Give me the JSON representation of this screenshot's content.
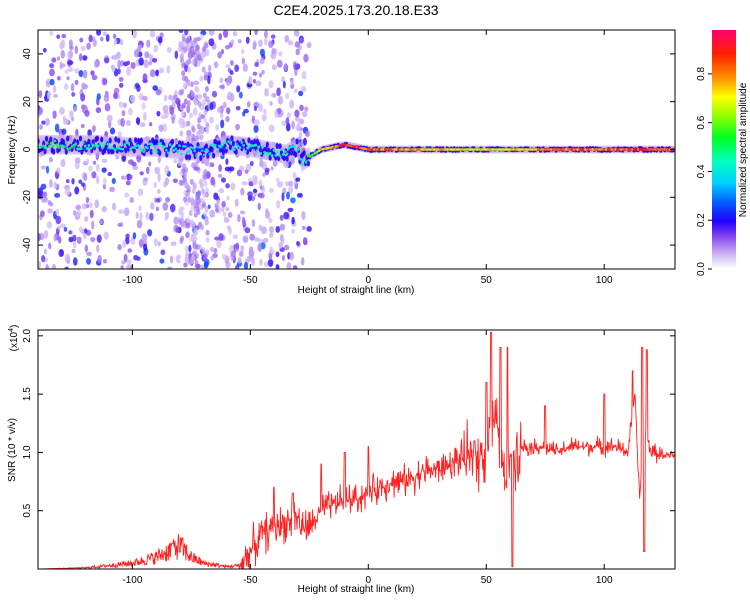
{
  "title": "C2E4.2025.173.20.18.E33",
  "colorbar": {
    "label": "Normalized spectral amplitude",
    "ticks": [
      "0.0",
      "0.2",
      "0.4",
      "0.6",
      "0.8"
    ],
    "tick_values": [
      0.0,
      0.2,
      0.4,
      0.6,
      0.8
    ],
    "range": [
      0,
      0.98
    ]
  },
  "chart_data": [
    {
      "type": "heatmap",
      "panel": "spectrogram",
      "xlabel": "Height of straight line (km)",
      "ylabel": "Frequency (Hz)",
      "xlim": [
        -140,
        130
      ],
      "ylim": [
        -50,
        50
      ],
      "xticks": [
        -100,
        -50,
        0,
        50,
        100
      ],
      "yticks": [
        -40,
        -20,
        0,
        20,
        40
      ],
      "scale_colors": [
        "#ffffff",
        "#dcc8f5",
        "#a070f0",
        "#6010e0",
        "#0000ff",
        "#0090ff",
        "#00ffff",
        "#00ff80",
        "#00ff00",
        "#a0ff00",
        "#ffff00",
        "#ffa000",
        "#ff4000",
        "#ff0040",
        "#ff0080"
      ],
      "ridge": {
        "description_points_x": [
          -125,
          -115,
          -100,
          -90,
          -80,
          -70,
          -60,
          -50,
          -45,
          -40,
          -35,
          -30,
          -28,
          -25,
          -20,
          -15,
          -10,
          0,
          10,
          20,
          30,
          40,
          50,
          60,
          70,
          80,
          90,
          100,
          110,
          120,
          130
        ],
        "frequency_hz": [
          2,
          2,
          1,
          1,
          0,
          -1,
          2,
          1,
          0,
          -1,
          -2,
          1,
          -5,
          -3,
          0,
          1,
          2,
          0,
          0,
          0,
          0,
          0,
          0,
          0,
          0,
          0,
          0,
          0,
          0,
          0,
          0
        ],
        "peak_amplitude": [
          0.55,
          0.5,
          0.45,
          0.5,
          0.45,
          0.4,
          0.45,
          0.45,
          0.5,
          0.5,
          0.5,
          0.5,
          0.45,
          0.6,
          0.75,
          0.85,
          0.95,
          0.9,
          0.85,
          0.8,
          0.8,
          0.75,
          0.75,
          0.78,
          0.8,
          0.85,
          0.85,
          0.85,
          0.9,
          0.9,
          0.9
        ]
      }
    },
    {
      "type": "line",
      "panel": "snr",
      "xlabel": "Height of straight line (km)",
      "ylabel": "SNR (10 * v/v)",
      "multiplier_label": "(x10",
      "multiplier_exp": "4",
      "multiplier_close": ")",
      "xlim": [
        -140,
        130
      ],
      "ylim": [
        0,
        2.05
      ],
      "xticks": [
        -100,
        -50,
        0,
        50,
        100
      ],
      "yticks": [
        0.5,
        1.0,
        1.5,
        2.0
      ],
      "ytick_labels": [
        "0.5",
        "1.0",
        "1.5",
        "2.0"
      ],
      "series_color": "#ff2020",
      "x": [
        -140,
        -120,
        -100,
        -90,
        -85,
        -80,
        -75,
        -70,
        -60,
        -55,
        -50,
        -45,
        -40,
        -35,
        -30,
        -28,
        -25,
        -20,
        -15,
        -10,
        -5,
        0,
        5,
        10,
        15,
        20,
        25,
        30,
        35,
        40,
        45,
        50,
        52,
        55,
        58,
        60,
        62,
        65,
        70,
        75,
        80,
        85,
        90,
        95,
        100,
        105,
        110,
        113,
        115,
        117,
        120,
        125,
        130
      ],
      "y": [
        0.0,
        0.01,
        0.05,
        0.1,
        0.15,
        0.2,
        0.1,
        0.05,
        0.02,
        0.03,
        0.15,
        0.3,
        0.35,
        0.4,
        0.45,
        0.35,
        0.35,
        0.5,
        0.55,
        0.6,
        0.6,
        0.65,
        0.7,
        0.75,
        0.75,
        0.8,
        0.85,
        0.85,
        0.9,
        0.95,
        0.95,
        1.0,
        1.3,
        1.2,
        0.7,
        1.0,
        1.0,
        1.05,
        1.05,
        1.05,
        1.0,
        1.05,
        1.05,
        1.05,
        1.05,
        1.05,
        1.0,
        1.5,
        0.6,
        1.2,
        1.0,
        0.98,
        0.98
      ],
      "peaks": [
        {
          "x": -83,
          "y": 0.22
        },
        {
          "x": -40,
          "y": 0.7
        },
        {
          "x": -32,
          "y": 0.65
        },
        {
          "x": -20,
          "y": 0.9
        },
        {
          "x": -10,
          "y": 1.0
        },
        {
          "x": 0,
          "y": 1.05
        },
        {
          "x": 45,
          "y": 1.1
        },
        {
          "x": 50,
          "y": 1.6
        },
        {
          "x": 52,
          "y": 2.03
        },
        {
          "x": 56,
          "y": 1.9
        },
        {
          "x": 59,
          "y": 1.9
        },
        {
          "x": 61,
          "y": 0.02
        },
        {
          "x": 75,
          "y": 1.4
        },
        {
          "x": 100,
          "y": 1.5
        },
        {
          "x": 112,
          "y": 1.7
        },
        {
          "x": 116,
          "y": 1.9
        },
        {
          "x": 118,
          "y": 1.88
        },
        {
          "x": 117,
          "y": 0.15
        }
      ]
    }
  ]
}
